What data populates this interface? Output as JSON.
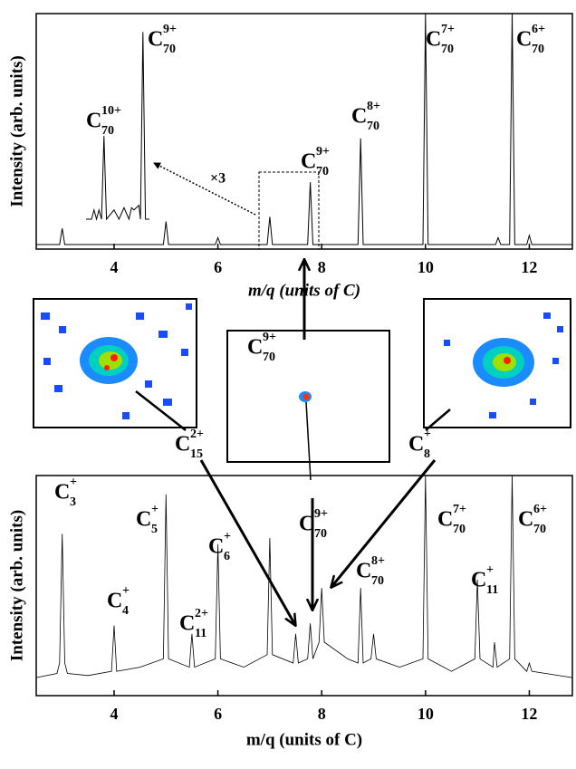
{
  "chart_data": [
    {
      "type": "line",
      "x_label": "m/q (units of C)",
      "y_label": "Intensity (arb. units)",
      "x": [
        2.5,
        2.95,
        3.0,
        3.05,
        4.95,
        5.0,
        5.05,
        5.95,
        6.0,
        6.05,
        6.95,
        7.0,
        7.05,
        7.73,
        7.78,
        7.83,
        8.7,
        8.75,
        8.8,
        9.95,
        10.0,
        10.05,
        11.35,
        11.4,
        11.45,
        11.62,
        11.67,
        11.72,
        11.95,
        12.0,
        12.05,
        12.83
      ],
      "values": [
        0,
        0,
        7,
        0,
        0,
        10,
        0,
        0,
        3,
        0,
        0,
        12,
        0,
        0,
        27,
        0,
        0,
        46,
        0,
        0,
        100,
        0,
        0,
        3,
        0,
        0,
        100,
        0,
        0,
        4,
        0,
        0
      ],
      "color": "#000000",
      "xlim": [
        2.5,
        12.83
      ],
      "ylim": [
        0,
        100
      ],
      "xticks": [
        4,
        6,
        8,
        10,
        12
      ],
      "annotations": [
        {
          "text": "C",
          "sub": "70",
          "sup": "10+"
        },
        {
          "text": "C",
          "sub": "70",
          "sup": "9+"
        },
        {
          "text": "C",
          "sub": "70",
          "sup": "9+"
        },
        {
          "text": "C",
          "sub": "70",
          "sup": "8+"
        },
        {
          "text": "C",
          "sub": "70",
          "sup": "7+"
        },
        {
          "text": "C",
          "sub": "70",
          "sup": "6+"
        }
      ],
      "inset_label": "×3"
    },
    {
      "type": "line",
      "x": [
        6.64,
        6.75,
        6.8,
        6.85,
        6.9,
        6.95,
        7.0,
        7.05,
        7.2,
        7.3,
        7.4,
        7.5,
        7.55,
        7.6,
        7.7,
        7.73,
        7.78,
        7.83,
        7.91
      ],
      "values": [
        0,
        0,
        4,
        0,
        4,
        0,
        36,
        0,
        4,
        0,
        5,
        0,
        5,
        4,
        6,
        0,
        81,
        0,
        0
      ],
      "color": "#000000",
      "xlim": [
        6.64,
        7.91
      ],
      "ylim": [
        0,
        100
      ]
    },
    {
      "type": "line",
      "x_label": "m/q (units of C)",
      "y_label": "Intensity (arb. units)",
      "x": [
        2.5,
        2.9,
        2.95,
        3.0,
        3.05,
        3.1,
        3.5,
        3.95,
        4.0,
        4.05,
        4.5,
        4.95,
        5.0,
        5.05,
        5.45,
        5.5,
        5.55,
        5.95,
        6.0,
        6.05,
        6.5,
        6.95,
        7.0,
        7.05,
        7.45,
        7.5,
        7.55,
        7.73,
        7.78,
        7.83,
        7.95,
        8.0,
        8.05,
        8.5,
        8.7,
        8.75,
        8.8,
        8.95,
        9.0,
        9.05,
        9.5,
        9.95,
        10.0,
        10.05,
        10.5,
        10.95,
        11.0,
        11.05,
        11.3,
        11.33,
        11.38,
        11.62,
        11.67,
        11.72,
        11.95,
        12.0,
        12.05,
        12.83
      ],
      "values": [
        3,
        5,
        10,
        72,
        10,
        5,
        4,
        6,
        28,
        6,
        8,
        12,
        91,
        12,
        8,
        24,
        8,
        12,
        67,
        12,
        8,
        14,
        70,
        14,
        10,
        24,
        10,
        12,
        29,
        12,
        20,
        46,
        20,
        12,
        10,
        46,
        10,
        12,
        24,
        12,
        8,
        12,
        100,
        12,
        6,
        12,
        50,
        12,
        8,
        20,
        8,
        12,
        100,
        12,
        6,
        10,
        6,
        3
      ],
      "color": "#000000",
      "xlim": [
        2.5,
        12.83
      ],
      "ylim": [
        0,
        100
      ],
      "xticks": [
        4,
        6,
        8,
        10,
        12
      ],
      "annotations": [
        {
          "text": "C",
          "sub": "3",
          "sup": "+"
        },
        {
          "text": "C",
          "sub": "4",
          "sup": "+"
        },
        {
          "text": "C",
          "sub": "5",
          "sup": "+"
        },
        {
          "text": "C",
          "sub": "11",
          "sup": "2+"
        },
        {
          "text": "C",
          "sub": "6",
          "sup": "+"
        },
        {
          "text": "C",
          "sub": "70",
          "sup": "9+"
        },
        {
          "text": "C",
          "sub": "70",
          "sup": "8+"
        },
        {
          "text": "C",
          "sub": "70",
          "sup": "7+"
        },
        {
          "text": "C",
          "sub": "11",
          "sup": "+"
        },
        {
          "text": "C",
          "sub": "70",
          "sup": "6+"
        }
      ]
    }
  ],
  "images": [
    {
      "text": "C",
      "sub": "70",
      "sup": "9+"
    },
    {
      "text": "C",
      "sub": "15",
      "sup": "2+"
    },
    {
      "text": "C",
      "sub": "8",
      "sup": "+"
    }
  ]
}
